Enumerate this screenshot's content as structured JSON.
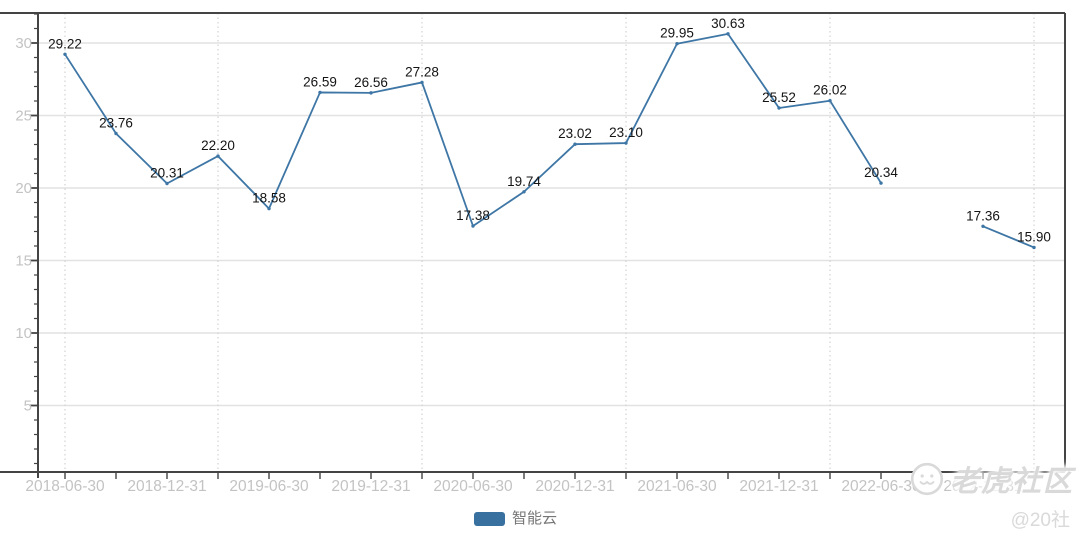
{
  "chart_data": {
    "type": "line",
    "title": "",
    "xlabel": "",
    "ylabel": "",
    "x_tick_labels": [
      "2018-06-30",
      "2018-12-31",
      "2019-06-30",
      "2019-12-31",
      "2020-06-30",
      "2020-12-31",
      "2021-06-30",
      "2021-12-31",
      "2022-06-30",
      "2022-12-31"
    ],
    "x_tick_label_slot_indices": [
      0,
      2,
      4,
      6,
      8,
      10,
      12,
      14,
      16,
      18
    ],
    "series": [
      {
        "name": "智能云",
        "values": [
          29.22,
          23.76,
          20.31,
          22.2,
          18.58,
          26.59,
          26.56,
          27.28,
          17.38,
          19.74,
          23.02,
          23.1,
          29.95,
          30.63,
          25.52,
          26.02,
          20.34,
          null,
          17.36,
          15.9
        ]
      }
    ],
    "point_labels": [
      "29.22",
      "23.76",
      "20.31",
      "22.20",
      "18.58",
      "26.59",
      "26.56",
      "27.28",
      "17.38",
      "19.74",
      "23.02",
      "23.10",
      "29.95",
      "30.63",
      "25.52",
      "26.02",
      "20.34",
      null,
      "17.36",
      "15.90"
    ],
    "y_ticks": [
      5,
      10,
      15,
      20,
      25,
      30
    ],
    "ylim": [
      0.4,
      32.1
    ],
    "grid": {
      "h_lines_at": [
        5,
        10,
        15,
        20,
        25,
        30
      ],
      "v_dotted_at_slots": [
        0,
        3,
        7,
        11,
        15,
        19
      ]
    },
    "legend_position": "bottom-center",
    "point_labels_visible": true
  },
  "legend": {
    "items": [
      {
        "label": "智能云"
      }
    ]
  },
  "watermark": {
    "brand": "老虎社区",
    "handle": "@20社"
  },
  "colors": {
    "background": "#ffffff",
    "series_line": "#3e76a5",
    "legend_swatch": "#38719f",
    "data_label": "#141414",
    "axis_text": "#c3c3c3",
    "axis_line": "#444444",
    "grid_line": "#e2e2e2",
    "grid_dotted": "#d2d2d2",
    "legend_text": "#767676",
    "watermark": "#d9d9d9"
  }
}
